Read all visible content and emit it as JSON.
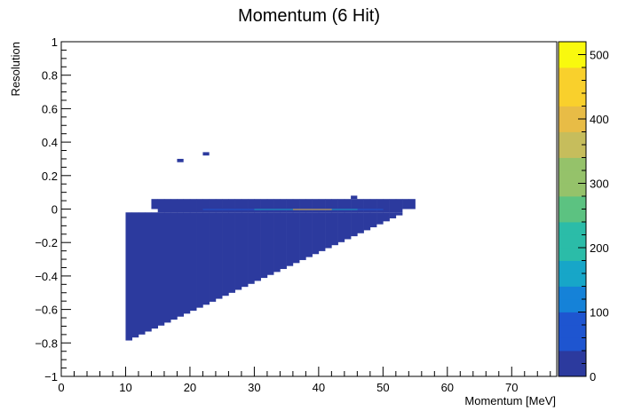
{
  "chart_data": {
    "type": "heatmap",
    "title": "Momentum (6 Hit)",
    "xlabel": "Momentum [MeV]",
    "ylabel": "Resolution",
    "xlim": [
      0,
      77
    ],
    "ylim": [
      -1,
      1
    ],
    "x_ticks": [
      {
        "v": 0,
        "label": "0"
      },
      {
        "v": 10,
        "label": "10"
      },
      {
        "v": 20,
        "label": "20"
      },
      {
        "v": 30,
        "label": "30"
      },
      {
        "v": 40,
        "label": "40"
      },
      {
        "v": 50,
        "label": "50"
      },
      {
        "v": 60,
        "label": "60"
      },
      {
        "v": 70,
        "label": "70"
      }
    ],
    "y_ticks": [
      {
        "v": -1,
        "label": "−1"
      },
      {
        "v": -0.8,
        "label": "−0.8"
      },
      {
        "v": -0.6,
        "label": "−0.6"
      },
      {
        "v": -0.4,
        "label": "−0.4"
      },
      {
        "v": -0.2,
        "label": "−0.2"
      },
      {
        "v": 0,
        "label": "0"
      },
      {
        "v": 0.2,
        "label": "0.2"
      },
      {
        "v": 0.4,
        "label": "0.4"
      },
      {
        "v": 0.6,
        "label": "0.6"
      },
      {
        "v": 0.8,
        "label": "0.8"
      },
      {
        "v": 1,
        "label": "1"
      }
    ],
    "bin_width_x": 1.0,
    "bin_width_y": 0.02,
    "zlim": [
      0,
      520
    ],
    "z_ticks": [
      {
        "v": 0,
        "label": "0"
      },
      {
        "v": 100,
        "label": "100"
      },
      {
        "v": 200,
        "label": "200"
      },
      {
        "v": 300,
        "label": "300"
      },
      {
        "v": 400,
        "label": "400"
      },
      {
        "v": 500,
        "label": "500"
      }
    ],
    "colormap": [
      "#2c3a9e",
      "#1e55d0",
      "#1582d8",
      "#17a6c8",
      "#2bbca8",
      "#5cc281",
      "#95c26a",
      "#c6bd5c",
      "#e8bc46",
      "#f9d02c",
      "#f9f90e"
    ],
    "regions": [
      {
        "x0": 10,
        "x1": 54,
        "y0": -0.8,
        "y1": -0.02,
        "lower_right_slope": 0.0178,
        "value": 1
      },
      {
        "x0": 15,
        "x1": 53,
        "y0": -0.02,
        "y1": 0.0,
        "value": 20
      },
      {
        "x0": 22,
        "x1": 50,
        "y0": -0.005,
        "y1": 0.005,
        "value": 80
      },
      {
        "x0": 30,
        "x1": 46,
        "y0": -0.005,
        "y1": 0.005,
        "value": 180
      },
      {
        "x0": 36,
        "x1": 42,
        "y0": -0.005,
        "y1": 0.005,
        "value": 420
      },
      {
        "x0": 14,
        "x1": 55,
        "y0": 0.0,
        "y1": 0.06,
        "value": 1
      }
    ],
    "isolated_bins": [
      {
        "x": 18.5,
        "y": 0.29,
        "value": 1
      },
      {
        "x": 22.5,
        "y": 0.33,
        "value": 1
      },
      {
        "x": 45.5,
        "y": 0.07,
        "value": 1
      }
    ]
  }
}
